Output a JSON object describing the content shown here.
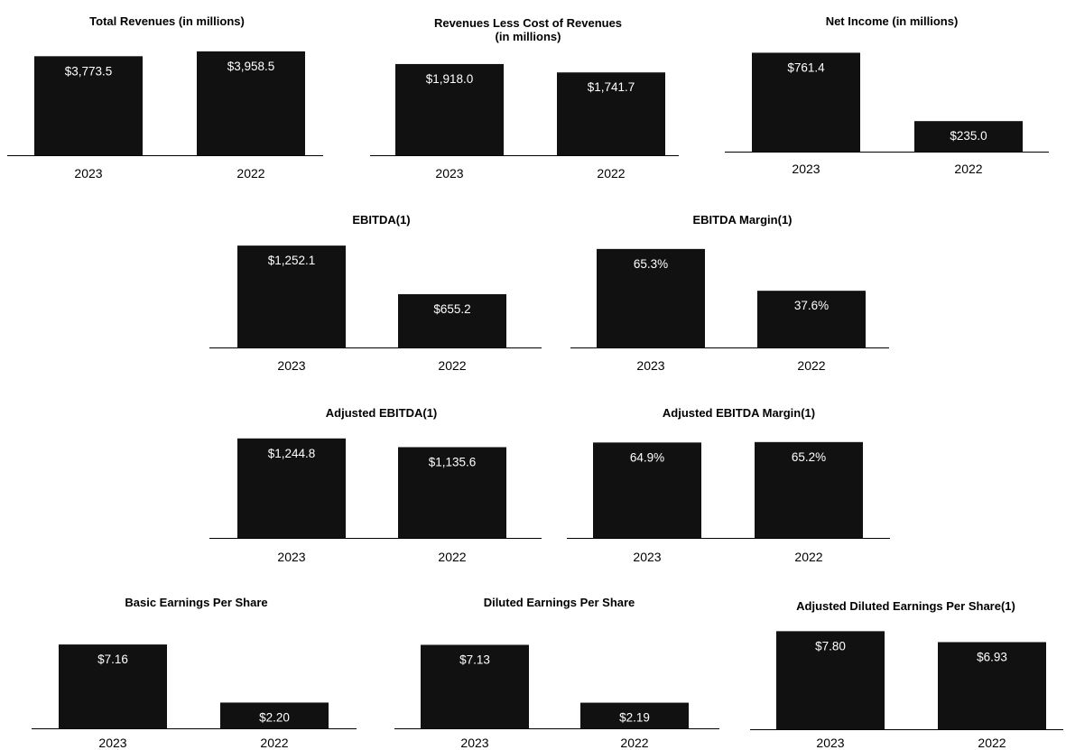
{
  "chart_data": [
    {
      "type": "bar",
      "title": "Total Revenues (in millions)",
      "categories": [
        "2023",
        "2022"
      ],
      "values": [
        3773.5,
        3958.5
      ],
      "data_labels": [
        "$3,773.5",
        "$3,958.5"
      ],
      "ylim": [
        0,
        4300
      ]
    },
    {
      "type": "bar",
      "title": "Revenues Less Cost of Revenues\n(in millions)",
      "categories": [
        "2023",
        "2022"
      ],
      "values": [
        1918.0,
        1741.7
      ],
      "data_labels": [
        "$1,918.0",
        "$1,741.7"
      ],
      "ylim": [
        0,
        2050
      ]
    },
    {
      "type": "bar",
      "title": "Net Income (in millions)",
      "categories": [
        "2023",
        "2022"
      ],
      "values": [
        761.4,
        235.0
      ],
      "data_labels": [
        "$761.4",
        "$235.0"
      ],
      "ylim": [
        0,
        820
      ]
    },
    {
      "type": "bar",
      "title": "EBITDA(1)",
      "categories": [
        "2023",
        "2022"
      ],
      "values": [
        1252.1,
        655.2
      ],
      "data_labels": [
        "$1,252.1",
        "$655.2"
      ],
      "ylim": [
        0,
        1320
      ]
    },
    {
      "type": "bar",
      "title": "EBITDA Margin(1)",
      "categories": [
        "2023",
        "2022"
      ],
      "values": [
        65.3,
        37.6
      ],
      "data_labels": [
        "65.3%",
        "37.6%"
      ],
      "ylim": [
        0,
        70
      ]
    },
    {
      "type": "bar",
      "title": "Adjusted EBITDA(1)",
      "categories": [
        "2023",
        "2022"
      ],
      "values": [
        1244.8,
        1135.6
      ],
      "data_labels": [
        "$1,244.8",
        "$1,135.6"
      ],
      "ylim": [
        0,
        1310
      ]
    },
    {
      "type": "bar",
      "title": "Adjusted EBITDA Margin(1)",
      "categories": [
        "2023",
        "2022"
      ],
      "values": [
        64.9,
        65.2
      ],
      "data_labels": [
        "64.9%",
        "65.2%"
      ],
      "ylim": [
        0,
        70
      ]
    },
    {
      "type": "bar",
      "title": "Basic Earnings Per Share",
      "categories": [
        "2023",
        "2022"
      ],
      "values": [
        7.16,
        2.2
      ],
      "data_labels": [
        "$7.16",
        "$2.20"
      ],
      "ylim": [
        0,
        8.4
      ]
    },
    {
      "type": "bar",
      "title": "Diluted Earnings Per Share",
      "categories": [
        "2023",
        "2022"
      ],
      "values": [
        7.13,
        2.19
      ],
      "data_labels": [
        "$7.13",
        "$2.19"
      ],
      "ylim": [
        0,
        8.4
      ]
    },
    {
      "type": "bar",
      "title": "Adjusted Diluted Earnings Per Share(1)",
      "categories": [
        "2023",
        "2022"
      ],
      "values": [
        7.8,
        6.93
      ],
      "data_labels": [
        "$7.80",
        "$6.93"
      ],
      "ylim": [
        0,
        8.4
      ]
    }
  ],
  "colors": {
    "bar": "#111111",
    "bar_label": "#ffffff",
    "axis": "#000000"
  }
}
